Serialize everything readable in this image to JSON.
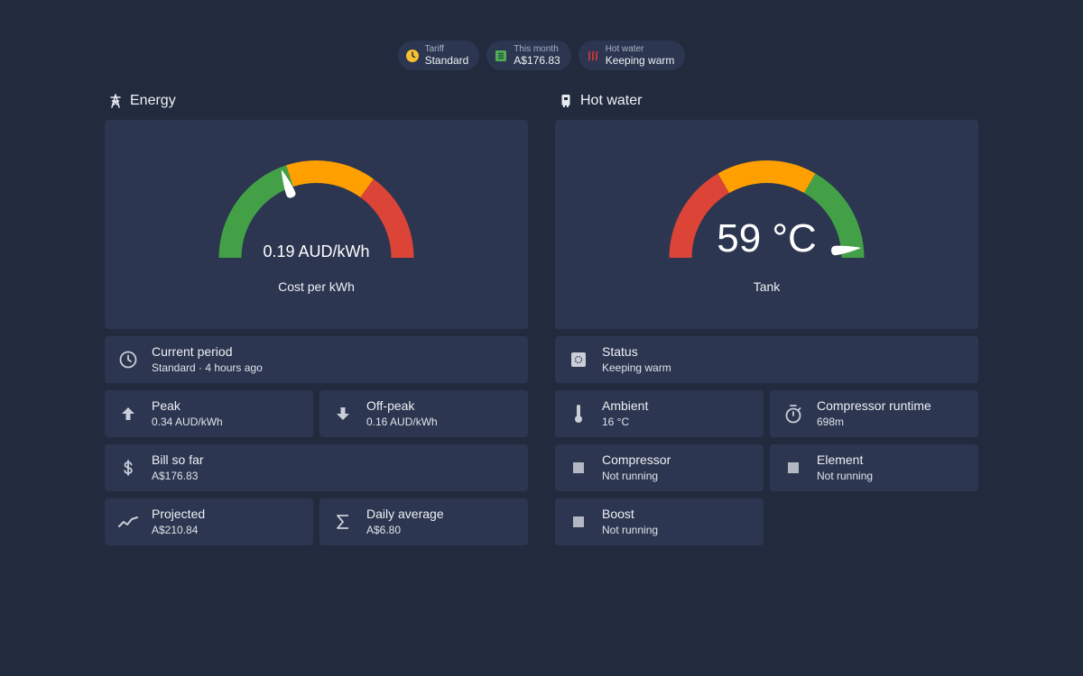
{
  "chips": {
    "tariff": {
      "label": "Tariff",
      "value": "Standard",
      "color": "#fbc02d"
    },
    "month": {
      "label": "This month",
      "value": "A$176.83",
      "color": "#4caf50"
    },
    "hot_water": {
      "label": "Hot water",
      "value": "Keeping warm",
      "color": "#e53935"
    }
  },
  "energy": {
    "title": "Energy",
    "icon": "transmission-tower-icon",
    "gauge": {
      "value": 0.19,
      "min": 0,
      "max": 0.5,
      "display": "0.19 AUD/kWh",
      "name": "Cost per kWh",
      "segments": [
        {
          "from": 0,
          "to": 0.2,
          "color": "#43a047"
        },
        {
          "from": 0.2,
          "to": 0.35,
          "color": "#ffa000"
        },
        {
          "from": 0.35,
          "to": 0.5,
          "color": "#db4437"
        }
      ]
    },
    "tiles": {
      "current_period": {
        "name": "Current period",
        "state": "Standard · 4 hours ago",
        "icon": "clock-icon"
      },
      "peak": {
        "name": "Peak",
        "state": "0.34 AUD/kWh",
        "icon": "arrow-up-icon"
      },
      "off_peak": {
        "name": "Off-peak",
        "state": "0.16 AUD/kWh",
        "icon": "arrow-down-icon"
      },
      "bill": {
        "name": "Bill so far",
        "state": "A$176.83",
        "icon": "dollar-icon"
      },
      "projected": {
        "name": "Projected",
        "state": "A$210.84",
        "icon": "trend-icon"
      },
      "daily_avg": {
        "name": "Daily average",
        "state": "A$6.80",
        "icon": "sigma-icon"
      }
    }
  },
  "hot_water": {
    "title": "Hot water",
    "icon": "water-heater-icon",
    "gauge": {
      "value": 59,
      "min": 30,
      "max": 60,
      "display": "59 °C",
      "name": "Tank",
      "segments": [
        {
          "from": 30,
          "to": 40,
          "color": "#db4437"
        },
        {
          "from": 40,
          "to": 50,
          "color": "#ffa000"
        },
        {
          "from": 50,
          "to": 60,
          "color": "#43a047"
        }
      ]
    },
    "tiles": {
      "status": {
        "name": "Status",
        "state": "Keeping warm",
        "icon": "status-icon"
      },
      "ambient": {
        "name": "Ambient",
        "state": "16 °C",
        "icon": "thermometer-icon"
      },
      "runtime": {
        "name": "Compressor runtime",
        "state": "698m",
        "icon": "timer-icon"
      },
      "compressor": {
        "name": "Compressor",
        "state": "Not running",
        "icon": "square-icon"
      },
      "element": {
        "name": "Element",
        "state": "Not running",
        "icon": "square-icon"
      },
      "boost": {
        "name": "Boost",
        "state": "Not running",
        "icon": "square-icon"
      }
    }
  }
}
